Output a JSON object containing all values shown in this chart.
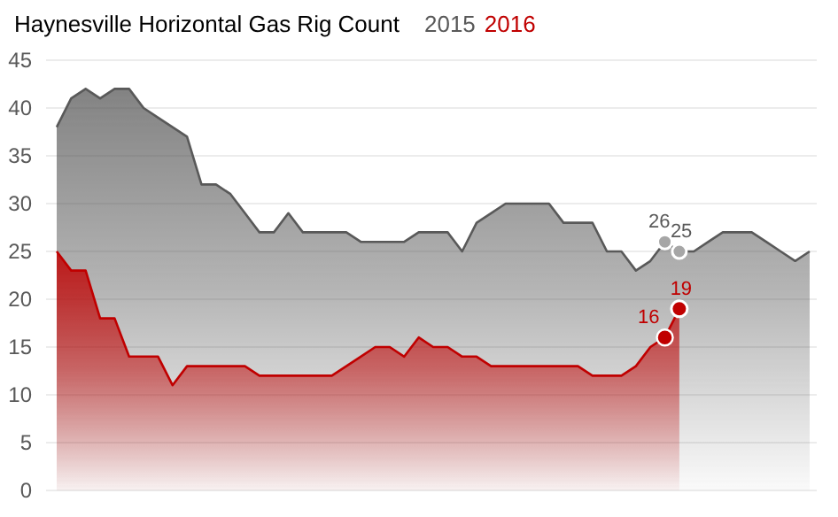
{
  "chart_data": {
    "type": "area",
    "title": "Haynesville Horizontal Gas Rig Count",
    "categories": [
      null,
      null,
      null,
      null,
      null,
      null,
      null,
      null,
      null,
      null,
      null,
      null,
      null,
      null,
      null,
      null,
      null,
      null,
      null,
      null,
      null,
      null,
      null,
      null,
      null,
      null,
      null,
      null,
      null,
      null,
      null,
      null,
      null,
      null,
      null,
      null,
      null,
      null,
      null,
      null,
      null,
      null,
      null,
      null,
      null,
      null,
      null,
      null,
      null,
      null,
      null,
      null,
      null
    ],
    "series": [
      {
        "name": "2015",
        "color": "#595959",
        "values": [
          38,
          41,
          42,
          41,
          42,
          42,
          40,
          39,
          38,
          37,
          32,
          32,
          31,
          29,
          27,
          27,
          29,
          27,
          27,
          27,
          27,
          26,
          26,
          26,
          26,
          27,
          27,
          27,
          25,
          28,
          29,
          30,
          30,
          30,
          30,
          28,
          28,
          28,
          25,
          25,
          23,
          24,
          26,
          25,
          25,
          26,
          27,
          27,
          27,
          26,
          25,
          24,
          25
        ],
        "value_labels": [
          null,
          null,
          null,
          null,
          null,
          null,
          null,
          null,
          null,
          null,
          null,
          null,
          null,
          null,
          null,
          null,
          null,
          null,
          null,
          null,
          null,
          null,
          null,
          null,
          null,
          null,
          null,
          null,
          null,
          null,
          null,
          null,
          null,
          null,
          null,
          null,
          null,
          null,
          null,
          null,
          null,
          null,
          "26",
          "25",
          null,
          null,
          null,
          null,
          null,
          null,
          null,
          null,
          null
        ]
      },
      {
        "name": "2016",
        "color": "#c00000",
        "values": [
          25,
          23,
          23,
          18,
          18,
          14,
          14,
          14,
          11,
          13,
          13,
          13,
          13,
          13,
          12,
          12,
          12,
          12,
          12,
          12,
          13,
          14,
          15,
          15,
          14,
          16,
          15,
          15,
          14,
          14,
          13,
          13,
          13,
          13,
          13,
          13,
          13,
          12,
          12,
          12,
          13,
          15,
          16,
          19,
          null,
          null,
          null,
          null,
          null,
          null,
          null,
          null,
          null
        ],
        "value_labels": [
          null,
          null,
          null,
          null,
          null,
          null,
          null,
          null,
          null,
          null,
          null,
          null,
          null,
          null,
          null,
          null,
          null,
          null,
          null,
          null,
          null,
          null,
          null,
          null,
          null,
          null,
          null,
          null,
          null,
          null,
          null,
          null,
          null,
          null,
          null,
          null,
          null,
          null,
          null,
          null,
          null,
          null,
          "16",
          "19",
          null,
          null,
          null,
          null,
          null,
          null,
          null,
          null,
          null
        ]
      }
    ],
    "ylim": [
      0,
      45
    ],
    "yticks": [
      0,
      5,
      10,
      15,
      20,
      25,
      30,
      35,
      40,
      45
    ],
    "grid": "y",
    "legend": "top"
  }
}
